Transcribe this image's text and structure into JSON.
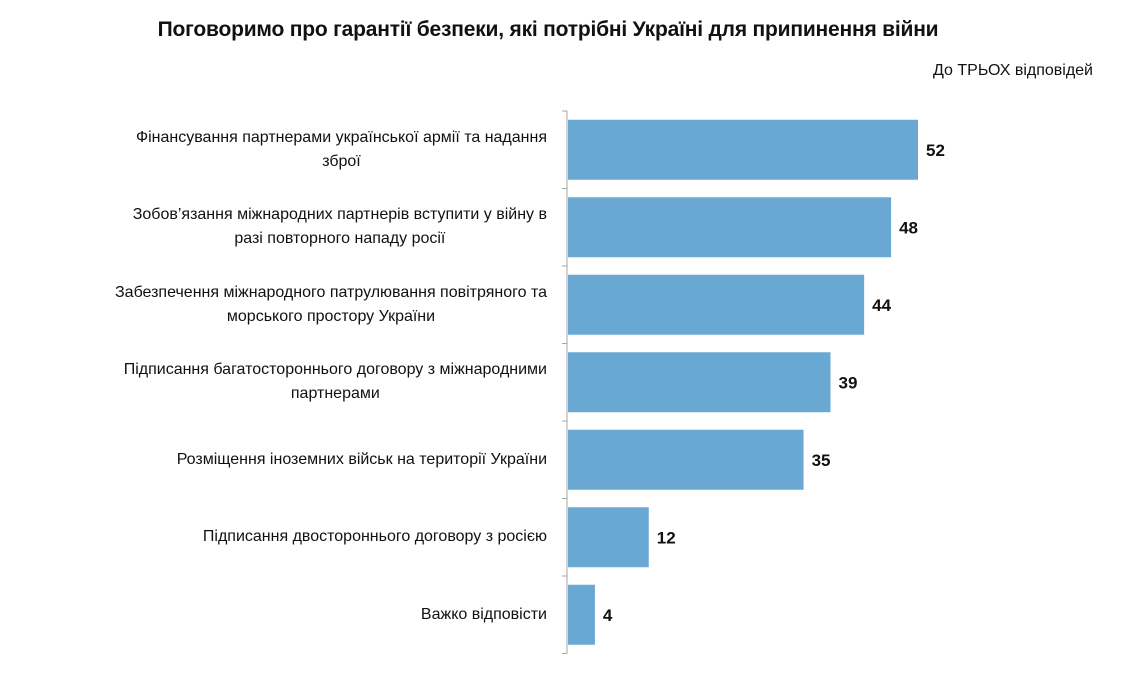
{
  "chart_data": {
    "type": "bar",
    "orientation": "horizontal",
    "title": "Поговоримо про гарантії безпеки, які потрібні Україні для припинення війни",
    "subtitle": "До ТРЬОХ відповідей",
    "categories": [
      "Фінансування партнерами української армії та надання збрoї",
      "Зобов’язання міжнародних партнерів вступити у війну в разі повторного нападу росії",
      "Забезпечення міжнародного патрулювання повітряного та морського простору України",
      "Підписання багатостороннього договору з міжнародними партнерами",
      "Розміщення іноземних військ на території України",
      "Підписання двостороннього договору з росією",
      "Важко відповісти"
    ],
    "label_lines": [
      [
        "Фінансування партнерами української армії та надання",
        "зброї"
      ],
      [
        "Зобов’язання міжнародних партнерів вступити у війну в",
        "разі повторного нападу росії"
      ],
      [
        "Забезпечення міжнародного патрулювання повітряного та",
        "морського простору України"
      ],
      [
        "Підписання багатостороннього договору з міжнародними",
        "партнерами"
      ],
      [
        "Розміщення іноземних військ на території України"
      ],
      [
        "Підписання двостороннього договору з росією"
      ],
      [
        "Важко відповісти"
      ]
    ],
    "values": [
      52,
      48,
      44,
      39,
      35,
      12,
      4
    ],
    "xlim": [
      0,
      60
    ],
    "bar_color": "#6aa8d4",
    "grid": false,
    "legend": "none"
  }
}
